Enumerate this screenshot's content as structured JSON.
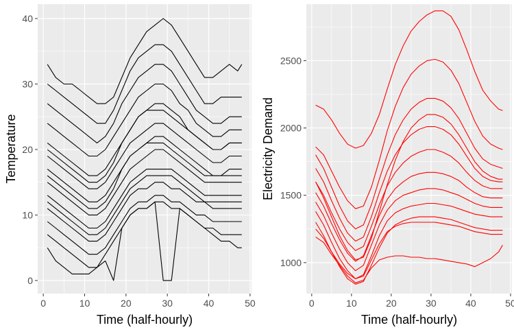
{
  "chart_data": [
    {
      "type": "line",
      "title": "",
      "xlabel": "Time (half-hourly)",
      "ylabel": "Temperature",
      "xlim": [
        -1.35,
        50.35
      ],
      "ylim": [
        -2.0,
        42.2
      ],
      "x_ticks": [
        0,
        10,
        20,
        30,
        40,
        50
      ],
      "y_ticks": [
        0,
        10,
        20,
        30,
        40
      ],
      "x_tick_labels": [
        "0",
        "10",
        "20",
        "30",
        "40",
        "50"
      ],
      "y_tick_labels": [
        "0",
        "10",
        "20",
        "30",
        "40"
      ],
      "grid": true,
      "line_color": "#000000",
      "x": [
        1,
        3,
        5,
        7,
        9,
        11,
        13,
        15,
        17,
        19,
        21,
        23,
        25,
        27,
        29,
        31,
        33,
        35,
        37,
        39,
        41,
        43,
        45,
        47,
        48
      ],
      "series": [
        {
          "values": [
            33,
            31,
            30,
            30,
            29,
            28,
            27,
            27,
            28,
            31,
            34,
            36,
            38,
            39,
            40,
            39,
            37,
            35,
            33,
            31,
            31,
            32,
            33,
            32,
            33
          ]
        },
        {
          "values": [
            30,
            29,
            28,
            27,
            26,
            25,
            24,
            24,
            26,
            29,
            32,
            34,
            35,
            36,
            36,
            35,
            33,
            31,
            29,
            27,
            27,
            28,
            28,
            28,
            28
          ]
        },
        {
          "values": [
            27,
            26,
            25,
            24,
            23,
            22,
            21,
            22,
            24,
            27,
            29,
            31,
            32,
            33,
            33,
            32,
            30,
            28,
            26,
            25,
            24,
            24,
            25,
            25,
            25
          ]
        },
        {
          "values": [
            24,
            23,
            22,
            21,
            20,
            19,
            19,
            20,
            22,
            24,
            26,
            28,
            29,
            30,
            30,
            29,
            27,
            26,
            24,
            23,
            22,
            22,
            23,
            23,
            23
          ]
        },
        {
          "values": [
            21,
            20,
            19,
            18,
            17,
            16,
            16,
            17,
            19,
            21,
            23,
            25,
            26,
            27,
            27,
            26,
            25,
            23,
            22,
            21,
            20,
            20,
            21,
            21,
            21
          ]
        },
        {
          "values": [
            19,
            18,
            17,
            16,
            15,
            14,
            14,
            15,
            17,
            19,
            21,
            22,
            23,
            24,
            24,
            23,
            22,
            21,
            20,
            19,
            18,
            18,
            19,
            19,
            19
          ]
        },
        {
          "values": [
            17,
            16,
            15,
            14,
            13,
            12,
            12,
            13,
            15,
            17,
            19,
            20,
            21,
            22,
            22,
            21,
            20,
            19,
            18,
            17,
            16,
            16,
            17,
            17,
            17
          ]
        },
        {
          "values": [
            15,
            14,
            13,
            12,
            11,
            10,
            10,
            11,
            13,
            15,
            17,
            18,
            19,
            20,
            20,
            19,
            18,
            17,
            16,
            15,
            15,
            15,
            15,
            15,
            15
          ]
        },
        {
          "values": [
            13,
            12,
            11,
            10,
            9,
            8,
            8,
            9,
            11,
            13,
            15,
            16,
            17,
            17,
            17,
            17,
            16,
            15,
            14,
            13,
            13,
            13,
            13,
            13,
            13
          ]
        },
        {
          "values": [
            11,
            10,
            9,
            8,
            7,
            6,
            6,
            7,
            9,
            11,
            13,
            14,
            14,
            15,
            15,
            14,
            14,
            13,
            12,
            12,
            11,
            11,
            11,
            11,
            11
          ]
        },
        {
          "values": [
            9,
            8,
            7,
            6,
            5,
            4,
            4,
            5,
            7,
            9,
            11,
            12,
            12,
            13,
            13,
            12,
            12,
            11,
            10,
            10,
            9,
            9,
            9,
            9,
            9
          ]
        },
        {
          "values": [
            7,
            6,
            5,
            4,
            3,
            2,
            2,
            4,
            6,
            8,
            10,
            11,
            11,
            12,
            12,
            11,
            11,
            10,
            9,
            8,
            8,
            7,
            7,
            7,
            7
          ]
        },
        {
          "values": [
            5,
            3,
            2,
            1,
            1,
            1,
            2,
            3,
            0,
            8,
            10,
            11,
            11,
            12,
            0,
            0,
            11,
            10,
            9,
            8,
            7,
            6,
            6,
            5,
            5
          ]
        },
        {
          "values": [
            20,
            19,
            18,
            17,
            16,
            15,
            15,
            16,
            18,
            21,
            23,
            25,
            26,
            26,
            26,
            25,
            24,
            23,
            22,
            21,
            20,
            20,
            21,
            21,
            21
          ]
        },
        {
          "values": [
            16,
            15,
            14,
            13,
            12,
            11,
            11,
            12,
            14,
            17,
            19,
            20,
            21,
            21,
            21,
            20,
            19,
            18,
            17,
            16,
            16,
            16,
            16,
            16,
            16
          ]
        },
        {
          "values": [
            12,
            11,
            10,
            9,
            8,
            7,
            7,
            8,
            10,
            12,
            14,
            15,
            16,
            16,
            16,
            16,
            15,
            14,
            13,
            12,
            12,
            12,
            12,
            12,
            12
          ]
        }
      ]
    },
    {
      "type": "line",
      "title": "",
      "xlabel": "Time (half-hourly)",
      "ylabel": "Electricity Demand",
      "xlim": [
        -1.35,
        50.35
      ],
      "ylim": [
        770,
        2920
      ],
      "x_ticks": [
        0,
        10,
        20,
        30,
        40,
        50
      ],
      "y_ticks": [
        1000,
        1500,
        2000,
        2500
      ],
      "x_tick_labels": [
        "0",
        "10",
        "20",
        "30",
        "40",
        "50"
      ],
      "y_tick_labels": [
        "1000",
        "1500",
        "2000",
        "2500"
      ],
      "grid": true,
      "line_color": "#FF0000",
      "x": [
        1,
        3,
        5,
        7,
        9,
        11,
        13,
        15,
        17,
        19,
        21,
        23,
        25,
        27,
        29,
        31,
        33,
        35,
        37,
        39,
        41,
        43,
        45,
        47,
        48
      ],
      "series": [
        {
          "values": [
            2170,
            2140,
            2060,
            1960,
            1880,
            1850,
            1870,
            1960,
            2100,
            2290,
            2470,
            2610,
            2720,
            2790,
            2840,
            2870,
            2870,
            2830,
            2730,
            2580,
            2420,
            2280,
            2200,
            2140,
            2130
          ]
        },
        {
          "values": [
            1860,
            1800,
            1680,
            1560,
            1460,
            1400,
            1420,
            1560,
            1760,
            1980,
            2160,
            2300,
            2400,
            2460,
            2500,
            2510,
            2490,
            2430,
            2330,
            2190,
            2050,
            1940,
            1880,
            1850,
            1840
          ]
        },
        {
          "values": [
            1800,
            1700,
            1560,
            1420,
            1310,
            1250,
            1280,
            1430,
            1620,
            1800,
            1950,
            2060,
            2140,
            2190,
            2220,
            2220,
            2200,
            2150,
            2070,
            1960,
            1850,
            1770,
            1730,
            1710,
            1700
          ]
        },
        {
          "values": [
            1700,
            1600,
            1460,
            1330,
            1220,
            1160,
            1190,
            1340,
            1520,
            1680,
            1800,
            1890,
            1950,
            1990,
            2010,
            2010,
            1990,
            1950,
            1880,
            1790,
            1700,
            1640,
            1610,
            1600,
            1600
          ]
        },
        {
          "values": [
            1600,
            1500,
            1370,
            1250,
            1150,
            1090,
            1120,
            1270,
            1430,
            1570,
            1670,
            1740,
            1790,
            1820,
            1840,
            1840,
            1820,
            1790,
            1740,
            1670,
            1610,
            1570,
            1550,
            1550,
            1550
          ]
        },
        {
          "values": [
            1520,
            1420,
            1290,
            1170,
            1070,
            1010,
            1050,
            1200,
            1350,
            1470,
            1550,
            1600,
            1640,
            1660,
            1670,
            1670,
            1660,
            1640,
            1610,
            1560,
            1520,
            1490,
            1480,
            1480,
            1480
          ]
        },
        {
          "values": [
            1450,
            1350,
            1220,
            1100,
            1000,
            940,
            980,
            1130,
            1280,
            1390,
            1460,
            1500,
            1520,
            1540,
            1550,
            1550,
            1540,
            1520,
            1500,
            1470,
            1440,
            1420,
            1410,
            1410,
            1410
          ]
        },
        {
          "values": [
            1380,
            1280,
            1150,
            1030,
            940,
            880,
            910,
            1050,
            1200,
            1310,
            1370,
            1400,
            1420,
            1430,
            1440,
            1440,
            1430,
            1420,
            1400,
            1380,
            1360,
            1350,
            1340,
            1340,
            1340
          ]
        },
        {
          "values": [
            1300,
            1200,
            1080,
            970,
            880,
            840,
            860,
            980,
            1110,
            1220,
            1280,
            1310,
            1330,
            1340,
            1340,
            1340,
            1330,
            1320,
            1300,
            1280,
            1260,
            1250,
            1240,
            1240,
            1240
          ]
        },
        {
          "values": [
            1190,
            1150,
            1060,
            980,
            900,
            850,
            870,
            960,
            1020,
            1040,
            1050,
            1050,
            1040,
            1040,
            1030,
            1030,
            1020,
            1010,
            1000,
            990,
            970,
            1000,
            1030,
            1080,
            1130
          ]
        },
        {
          "values": [
            1250,
            1180,
            1080,
            990,
            920,
            880,
            900,
            1020,
            1140,
            1230,
            1270,
            1290,
            1300,
            1300,
            1300,
            1300,
            1290,
            1280,
            1270,
            1250,
            1230,
            1220,
            1210,
            1210,
            1210
          ]
        },
        {
          "values": [
            1600,
            1480,
            1340,
            1200,
            1090,
            1020,
            1040,
            1180,
            1380,
            1580,
            1760,
            1900,
            2000,
            2060,
            2100,
            2100,
            2080,
            2030,
            1950,
            1850,
            1750,
            1680,
            1640,
            1620,
            1620
          ]
        }
      ]
    }
  ]
}
